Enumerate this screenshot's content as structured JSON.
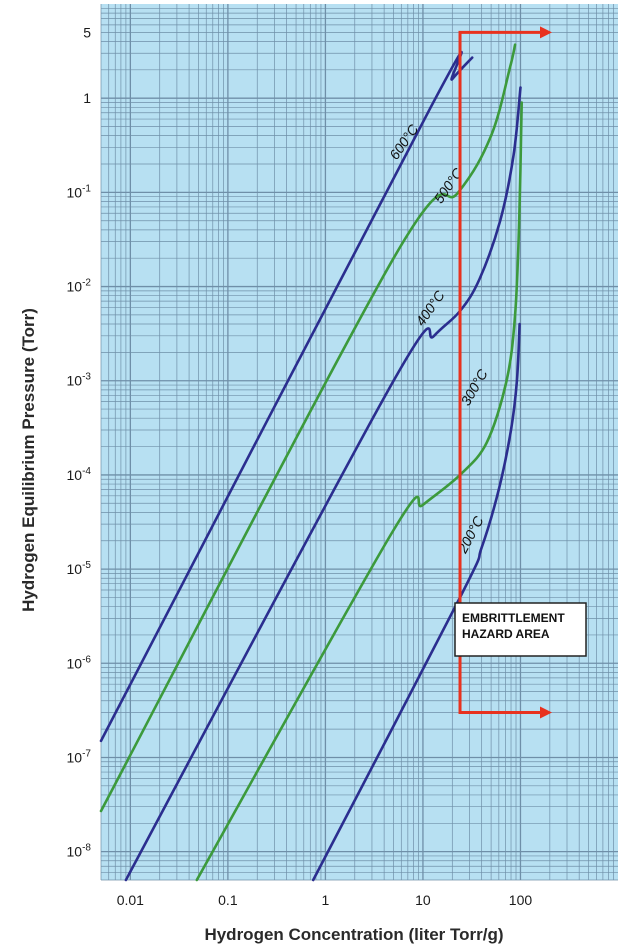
{
  "chart_data": {
    "type": "line",
    "title": "",
    "xlabel": "Hydrogen Concentration (liter Torr/g)",
    "ylabel": "Hydrogen Equilibrium Pressure (Torr)",
    "x_scale": "log",
    "y_scale": "log",
    "xlim": [
      0.005,
      1000
    ],
    "ylim": [
      5e-09,
      10
    ],
    "grid": true,
    "x_ticks": [
      {
        "value": 0.01,
        "label": "0.01"
      },
      {
        "value": 0.1,
        "label": "0.1"
      },
      {
        "value": 1,
        "label": "1"
      },
      {
        "value": 10,
        "label": "10"
      },
      {
        "value": 100,
        "label": "100"
      }
    ],
    "y_ticks": [
      {
        "value": 5,
        "label": "5"
      },
      {
        "value": 1,
        "label": "1"
      },
      {
        "value": 0.1,
        "label": "10-1"
      },
      {
        "value": 0.01,
        "label": "10-2"
      },
      {
        "value": 0.001,
        "label": "10-3"
      },
      {
        "value": 0.0001,
        "label": "10-4"
      },
      {
        "value": 1e-05,
        "label": "10-5"
      },
      {
        "value": 1e-06,
        "label": "10-6"
      },
      {
        "value": 1e-07,
        "label": "10-7"
      },
      {
        "value": 1e-08,
        "label": "10-8"
      }
    ],
    "series": [
      {
        "name": "600°C",
        "color": "#2b2e8f",
        "points": [
          [
            0.005,
            1.5e-07
          ],
          [
            12,
            0.8
          ],
          [
            20,
            1.6
          ],
          [
            32,
            2.7
          ]
        ]
      },
      {
        "name": "500°C",
        "color": "#3c9a3c",
        "points": [
          [
            0.005,
            2.7e-08
          ],
          [
            5,
            0.02
          ],
          [
            23,
            0.1
          ],
          [
            50,
            0.4
          ],
          [
            78,
            2.1
          ],
          [
            88,
            3.7
          ]
        ]
      },
      {
        "name": "400°C",
        "color": "#2b2e8f",
        "points": [
          [
            0.009,
            5e-09
          ],
          [
            5,
            0.001
          ],
          [
            13,
            0.003
          ],
          [
            24,
            0.0055
          ],
          [
            38,
            0.012
          ],
          [
            62,
            0.05
          ],
          [
            85,
            0.25
          ],
          [
            100,
            1.3
          ]
        ]
      },
      {
        "name": "300°C",
        "color": "#3c9a3c",
        "points": [
          [
            0.048,
            5e-09
          ],
          [
            5,
            2.6e-05
          ],
          [
            10,
            4.8e-05
          ],
          [
            24,
            0.0001
          ],
          [
            45,
            0.00022
          ],
          [
            72,
            0.001
          ],
          [
            88,
            0.005
          ],
          [
            97,
            0.05
          ],
          [
            103,
            0.9
          ]
        ]
      },
      {
        "name": "200°C",
        "color": "#2b2e8f",
        "points": [
          [
            0.75,
            5e-09
          ],
          [
            24,
            5e-06
          ],
          [
            40,
            1.7e-05
          ],
          [
            60,
            7e-05
          ],
          [
            80,
            0.0003
          ],
          [
            92,
            0.001
          ],
          [
            98,
            0.004
          ]
        ]
      }
    ],
    "annotations": [
      {
        "text": "600°C",
        "x": 7,
        "y": 0.32,
        "angle": -55
      },
      {
        "text": "500°C",
        "x": 20,
        "y": 0.11,
        "angle": -55
      },
      {
        "text": "400°C",
        "x": 13,
        "y": 0.0055,
        "angle": -55
      },
      {
        "text": "300°C",
        "x": 37,
        "y": 0.0008,
        "angle": -60
      },
      {
        "text": "200°C",
        "x": 34,
        "y": 2.2e-05,
        "angle": -62
      }
    ],
    "hazard": {
      "color": "#e8321f",
      "x": 24,
      "y_top": 5,
      "y_bottom": 3e-07,
      "arrow_end_x": 540,
      "label_lines": [
        "EMBRITTLEMENT",
        "HAZARD AREA"
      ]
    },
    "colors": {
      "plot_bg": "#b7e0f2",
      "grid": "#6f8fa8"
    }
  }
}
